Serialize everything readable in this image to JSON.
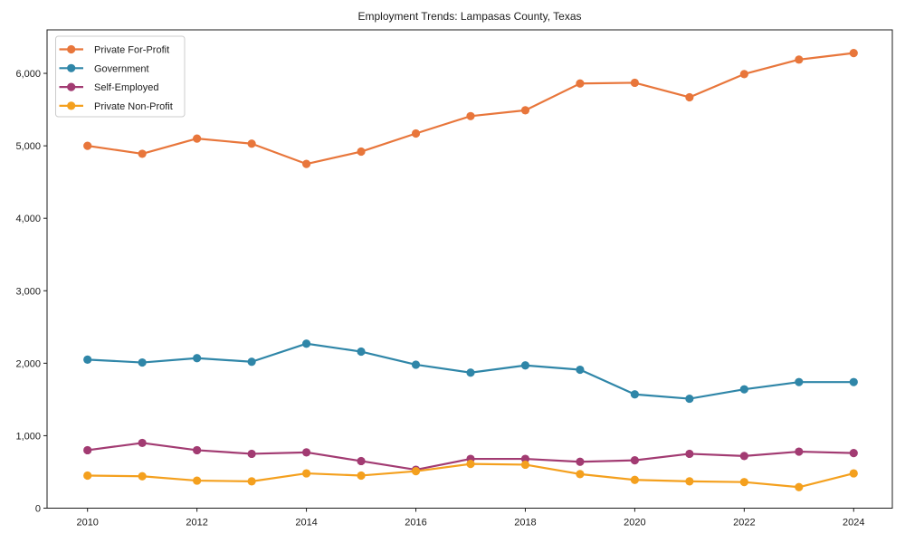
{
  "chart_data": {
    "type": "line",
    "title": "Employment Trends: Lampasas County, Texas",
    "x": [
      2010,
      2011,
      2012,
      2013,
      2014,
      2015,
      2016,
      2017,
      2018,
      2019,
      2020,
      2021,
      2022,
      2023,
      2024
    ],
    "x_ticks": [
      2010,
      2012,
      2014,
      2016,
      2018,
      2020,
      2022,
      2024
    ],
    "x_tick_labels": [
      "2010",
      "2012",
      "2014",
      "2016",
      "2018",
      "2020",
      "2022",
      "2024"
    ],
    "y_ticks": [
      0,
      1000,
      2000,
      3000,
      4000,
      5000,
      6000
    ],
    "y_tick_labels": [
      "0",
      "1,000",
      "2,000",
      "3,000",
      "4,000",
      "5,000",
      "6,000"
    ],
    "ylim": [
      0,
      6600
    ],
    "grid": false,
    "legend_position": "upper-left",
    "marker": "circle",
    "series": [
      {
        "name": "Private For-Profit",
        "color": "#e8763b",
        "values": [
          5000,
          4890,
          5100,
          5030,
          4750,
          4920,
          5170,
          5410,
          5490,
          5860,
          5870,
          5670,
          5990,
          6190,
          6280
        ]
      },
      {
        "name": "Government",
        "color": "#2f86a8",
        "values": [
          2050,
          2010,
          2070,
          2020,
          2270,
          2160,
          1980,
          1870,
          1970,
          1910,
          1570,
          1510,
          1640,
          1740,
          1740
        ]
      },
      {
        "name": "Self-Employed",
        "color": "#a23b72",
        "values": [
          800,
          900,
          800,
          750,
          770,
          650,
          530,
          680,
          680,
          640,
          660,
          750,
          720,
          780,
          760
        ]
      },
      {
        "name": "Private Non-Profit",
        "color": "#f4a01e",
        "values": [
          450,
          440,
          380,
          370,
          480,
          450,
          510,
          610,
          600,
          470,
          390,
          370,
          360,
          290,
          480
        ]
      }
    ]
  }
}
